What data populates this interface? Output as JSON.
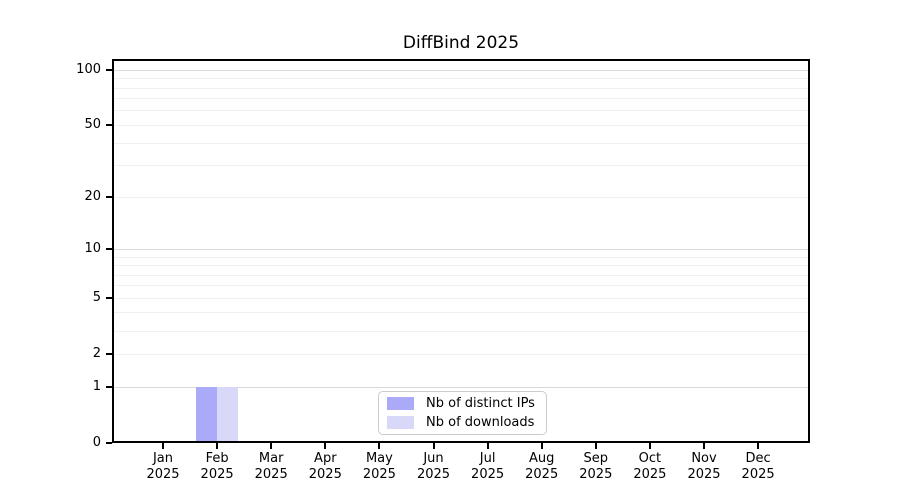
{
  "chart_data": {
    "type": "bar",
    "title": "DiffBind 2025",
    "year": "2025",
    "months": [
      "Jan",
      "Feb",
      "Mar",
      "Apr",
      "May",
      "Jun",
      "Jul",
      "Aug",
      "Sep",
      "Oct",
      "Nov",
      "Dec"
    ],
    "categories": [
      "Jan 2025",
      "Feb 2025",
      "Mar 2025",
      "Apr 2025",
      "May 2025",
      "Jun 2025",
      "Jul 2025",
      "Aug 2025",
      "Sep 2025",
      "Oct 2025",
      "Nov 2025",
      "Dec 2025"
    ],
    "series": [
      {
        "name": "Nb of distinct IPs",
        "color": "#aaaaf8",
        "values": [
          0,
          1,
          0,
          0,
          0,
          0,
          0,
          0,
          0,
          0,
          0,
          0
        ]
      },
      {
        "name": "Nb of downloads",
        "color": "#d8d8f8",
        "values": [
          0,
          1,
          0,
          0,
          0,
          0,
          0,
          0,
          0,
          0,
          0,
          0
        ]
      }
    ],
    "yticks": [
      0,
      1,
      2,
      5,
      10,
      20,
      50,
      100
    ],
    "major_gridlines": [
      1,
      10,
      100
    ],
    "minor_gridlines": [
      2,
      3,
      4,
      5,
      6,
      7,
      8,
      9,
      20,
      30,
      40,
      50,
      60,
      70,
      80,
      90
    ],
    "scale": "log1p",
    "ylim": [
      0,
      116
    ],
    "grid": "horizontal",
    "legend_position": "lower center",
    "colors": {
      "axis": "#000000",
      "major_grid": "#d9d9d9",
      "minor_grid": "#f0f0f0",
      "legend_border": "#cccccc"
    }
  }
}
